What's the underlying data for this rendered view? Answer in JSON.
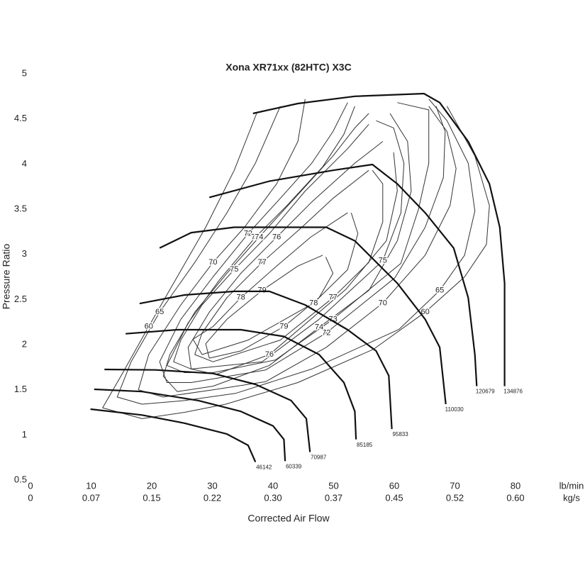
{
  "chart_data": {
    "type": "compressor-map",
    "title": "Xona XR71xx (82HTC) X3C",
    "xlabel": "Corrected Air Flow",
    "ylabel": "Pressure Ratio",
    "x_unit": "lb/min",
    "x2_unit": "kg/s",
    "xlim": [
      0,
      80
    ],
    "xticks": [
      0,
      10,
      20,
      30,
      40,
      50,
      60,
      70,
      80
    ],
    "x2ticks": [
      0,
      {
        "value": 10,
        "label": "0.07"
      },
      {
        "value": 20,
        "label": "0.15"
      },
      {
        "value": 30,
        "label": "0.22"
      },
      {
        "value": 40,
        "label": "0.30"
      },
      {
        "value": 50,
        "label": "0.37"
      },
      {
        "value": 60,
        "label": "0.45"
      },
      {
        "value": 70,
        "label": "0.52"
      },
      {
        "value": 80,
        "label": "0.60"
      }
    ],
    "ylim": [
      0.5,
      5
    ],
    "yticks": [
      0.5,
      1,
      1.5,
      2,
      2.5,
      3,
      3.5,
      4,
      4.5,
      5
    ],
    "speed_line_color": "#111111",
    "contour_color": "#333333",
    "speed_lines": [
      {
        "name": "46142",
        "x": [
          9.9,
          18.4,
          25.4,
          32.4,
          35.9,
          37.1
        ],
        "values": [
          1.285,
          1.22,
          1.13,
          1.01,
          0.885,
          0.7
        ]
      },
      {
        "name": "60339",
        "x": [
          10.5,
          18.4,
          27.7,
          34.7,
          40,
          41.8,
          42
        ],
        "values": [
          1.505,
          1.48,
          1.38,
          1.26,
          1.1,
          0.95,
          0.71
        ]
      },
      {
        "name": "70987",
        "x": [
          12.2,
          20.7,
          30.1,
          37.1,
          43,
          45.5,
          46.1
        ],
        "values": [
          1.725,
          1.72,
          1.68,
          1.56,
          1.38,
          1.18,
          0.81
        ]
      },
      {
        "name": "85185",
        "x": [
          15.7,
          24.2,
          34.7,
          41.8,
          47.6,
          51.7,
          53.5,
          53.7
        ],
        "values": [
          2.12,
          2.165,
          2.165,
          2.09,
          1.89,
          1.58,
          1.26,
          0.95
        ]
      },
      {
        "name": "95833",
        "x": [
          18,
          25.4,
          33.6,
          39.4,
          45.3,
          52.3,
          57,
          59.1,
          59.6
        ],
        "values": [
          2.455,
          2.55,
          2.59,
          2.59,
          2.44,
          2.165,
          1.93,
          1.655,
          1.065
        ]
      },
      {
        "name": "110030",
        "x": [
          21.3,
          26.5,
          33.6,
          48.8,
          53.5,
          60.5,
          65.1,
          67.5,
          68.5
        ],
        "values": [
          3.07,
          3.24,
          3.3,
          3.3,
          3.15,
          2.68,
          2.28,
          1.97,
          1.34
        ]
      },
      {
        "name": "120679",
        "x": [
          29.5,
          39.4,
          49.9,
          56.4,
          60.5,
          65.1,
          69.8,
          72.2,
          73.3,
          73.6
        ],
        "values": [
          3.63,
          3.81,
          3.93,
          3.995,
          3.78,
          3.46,
          3.07,
          2.52,
          1.89,
          1.54
        ]
      },
      {
        "name": "134876",
        "x": [
          36.7,
          44.1,
          53.5,
          64.9,
          67.5,
          72.2,
          75.7,
          77.4,
          78.2,
          78.2
        ],
        "values": [
          4.56,
          4.67,
          4.75,
          4.78,
          4.68,
          4.25,
          3.78,
          3.3,
          2.68,
          1.54
        ]
      }
    ],
    "efficiency_contours": [
      {
        "name": "60",
        "x": [
          37.3,
          33.6,
          28.9,
          24.2,
          19.5,
          14.9,
          11.9,
          18.4,
          25.4,
          32.2,
          44.1,
          56.6,
          65.1,
          71.6,
          75.2,
          75.7,
          73.3,
          68.7
        ],
        "values": [
          4.56,
          3.93,
          3.3,
          2.75,
          2.2,
          1.65,
          1.3,
          1.18,
          1.25,
          1.34,
          1.58,
          1.95,
          2.36,
          2.75,
          3.11,
          3.54,
          4.09,
          4.64
        ]
      },
      {
        "name": "65",
        "x": [
          41.2,
          37.1,
          32.4,
          27.1,
          21.3,
          16.6,
          14.3,
          18.4,
          25.4,
          33.8,
          46.4,
          60.8,
          67.5,
          71.6,
          73.3,
          72.2,
          68.7,
          65.7
        ],
        "values": [
          4.64,
          4.01,
          3.46,
          2.91,
          2.36,
          1.81,
          1.42,
          1.34,
          1.38,
          1.46,
          1.73,
          2.17,
          2.6,
          2.99,
          3.48,
          4.01,
          4.48,
          4.72
        ]
      },
      {
        "name": "70",
        "x": [
          45.3,
          44.1,
          40.6,
          35.3,
          30.1,
          24.8,
          19.5,
          17.8,
          21.9,
          30.1,
          38.8,
          48.8,
          58.1,
          65.1,
          69.2,
          70.2,
          68.7,
          65.7
        ],
        "values": [
          4.72,
          4.25,
          3.78,
          3.3,
          2.91,
          2.44,
          1.89,
          1.5,
          1.42,
          1.5,
          1.59,
          1.97,
          2.46,
          2.99,
          3.54,
          3.95,
          4.36,
          4.64
        ]
      },
      {
        "name": "72",
        "x": [
          52.3,
          49.9,
          46.4,
          41.2,
          35.9,
          30.1,
          24.8,
          21.3,
          22.5,
          26.5,
          38.8,
          48.8,
          60.1,
          65.1,
          68.1,
          68.4,
          66.9
        ],
        "values": [
          4.68,
          4.36,
          4.01,
          3.62,
          3.23,
          2.75,
          2.28,
          1.81,
          1.58,
          1.58,
          1.72,
          2.13,
          2.74,
          3.3,
          3.85,
          4.36,
          4.64
        ]
      },
      {
        "name": "73",
        "x": [
          53.5,
          51.7,
          48.2,
          42.3,
          37.1,
          31.2,
          26.0,
          22.5,
          25.4,
          30.1,
          40.4,
          49.9,
          61.1,
          64.0,
          65.7,
          65.7,
          60.5
        ],
        "values": [
          4.64,
          4.33,
          3.97,
          3.54,
          3.19,
          2.72,
          2.24,
          1.77,
          1.69,
          1.69,
          1.83,
          2.28,
          2.9,
          3.5,
          4.01,
          4.6,
          4.68
        ]
      },
      {
        "name": "74",
        "x": [
          55.8,
          53.5,
          49.9,
          44.1,
          37.7,
          32.4,
          27.1,
          23.0,
          21.9,
          24.2,
          30.1,
          39.4,
          47.6,
          55.8,
          60.5,
          62.8,
          62.2,
          59.3
        ],
        "values": [
          4.56,
          4.4,
          4.09,
          3.66,
          3.19,
          2.79,
          2.36,
          1.89,
          1.65,
          1.48,
          1.54,
          1.77,
          2.19,
          2.6,
          3.15,
          3.7,
          4.25,
          4.56
        ]
      },
      {
        "name": "75",
        "x": [
          55.8,
          52.3,
          45.3,
          39.4,
          33.6,
          28.3,
          24.8,
          23.6,
          26.5,
          38.2,
          47.6,
          58.1,
          61.1,
          61.6,
          59.9,
          57.0
        ],
        "values": [
          4.44,
          4.17,
          3.7,
          3.23,
          2.83,
          2.44,
          2.05,
          1.81,
          1.73,
          1.81,
          2.28,
          2.93,
          3.46,
          4.01,
          4.4,
          4.48
        ]
      },
      {
        "name": "76",
        "x": [
          58.1,
          53.5,
          46.4,
          40.6,
          34.7,
          29.5,
          26.0,
          26.5,
          30.6,
          39.4,
          52.0,
          58.7,
          60.5,
          59.9
        ],
        "values": [
          4.25,
          4.01,
          3.58,
          3.19,
          2.79,
          2.36,
          1.97,
          1.73,
          1.67,
          1.89,
          2.61,
          3.15,
          3.7,
          4.13
        ]
      },
      {
        "name": "77",
        "x": [
          55.8,
          49.9,
          44.6,
          38.2,
          32.4,
          28.3,
          27.1,
          30.1,
          41.2,
          49.9,
          55.8,
          58.1,
          58.1,
          56.4
        ],
        "values": [
          3.93,
          3.62,
          3.29,
          2.91,
          2.52,
          2.13,
          1.89,
          1.81,
          2.05,
          2.52,
          2.91,
          3.36,
          3.78,
          3.93
        ]
      },
      {
        "name": "78",
        "x": [
          52.3,
          46.2,
          40.6,
          34.7,
          30.1,
          26.8,
          28.3,
          35.9,
          46.7,
          52.3,
          54.0,
          52.9
        ],
        "values": [
          3.46,
          3.19,
          2.87,
          2.52,
          2.2,
          2.06,
          1.89,
          2.05,
          2.46,
          2.83,
          3.23,
          3.46
        ]
      },
      {
        "name": "79",
        "x": [
          48.2,
          44.1,
          38.2,
          32.4,
          28.9,
          29.5,
          34.7,
          41.8,
          47.6,
          49.9,
          48.7
        ],
        "values": [
          2.99,
          2.87,
          2.6,
          2.28,
          2.01,
          1.85,
          1.93,
          2.2,
          2.52,
          2.79,
          2.97
        ]
      }
    ]
  }
}
